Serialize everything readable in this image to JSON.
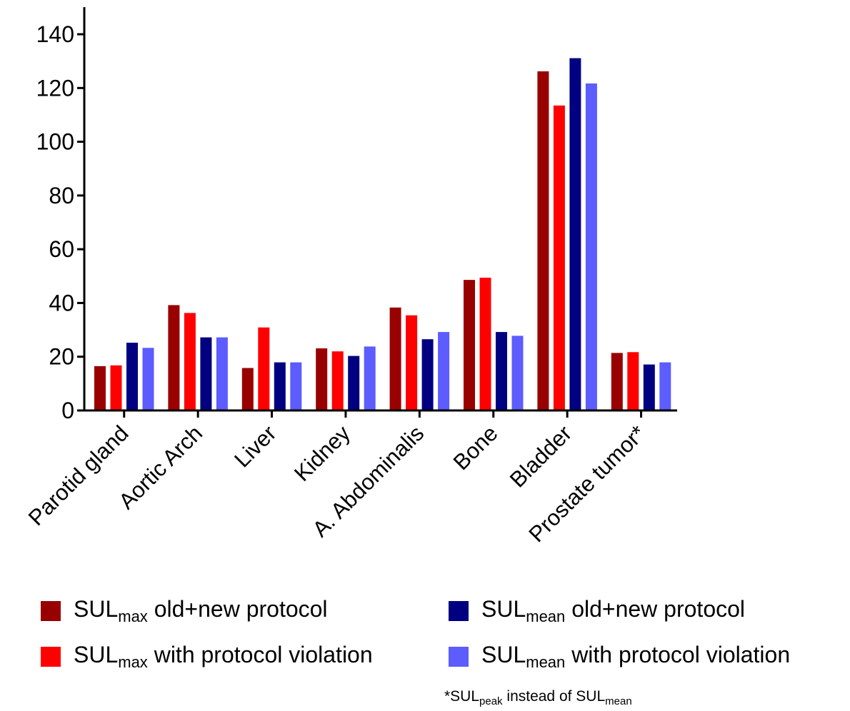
{
  "chart_data": {
    "type": "bar",
    "categories": [
      "Parotid gland",
      "Aortic Arch",
      "Liver",
      "Kidney",
      "A. Abdominalis",
      "Bone",
      "Bladder",
      "Prostate tumor*"
    ],
    "series": [
      {
        "label": {
          "base": "SUL",
          "sub": "max",
          "rest": " old+new protocol"
        },
        "color": "#990000",
        "values": [
          16.5,
          39.2,
          15.8,
          23.1,
          38.3,
          48.6,
          126.2,
          21.4
        ]
      },
      {
        "label": {
          "base": "SUL",
          "sub": "max",
          "rest": " with protocol violation"
        },
        "color": "#ff0000",
        "values": [
          16.8,
          36.3,
          30.9,
          22.0,
          35.4,
          49.4,
          113.5,
          21.7
        ]
      },
      {
        "label": {
          "base": "SUL",
          "sub": "mean",
          "rest": " old+new protocol"
        },
        "color": "#000080",
        "values": [
          25.2,
          27.2,
          17.9,
          20.3,
          26.5,
          29.2,
          131.1,
          17.1
        ]
      },
      {
        "label": {
          "base": "SUL",
          "sub": "mean",
          "rest": " with protocol violation"
        },
        "color": "#5c5cff",
        "values": [
          23.3,
          27.2,
          17.9,
          23.8,
          29.2,
          27.8,
          121.7,
          17.9
        ]
      }
    ],
    "ylim": [
      0,
      150
    ],
    "yticks": [
      "0",
      "20",
      "40",
      "60",
      "80",
      "100",
      "120",
      "140"
    ],
    "grid": false,
    "legend_placement": "bottom",
    "footnote": {
      "prefix": "*SUL",
      "sub1": "peak",
      "middle": " instead of SUL",
      "sub2": "mean"
    }
  }
}
